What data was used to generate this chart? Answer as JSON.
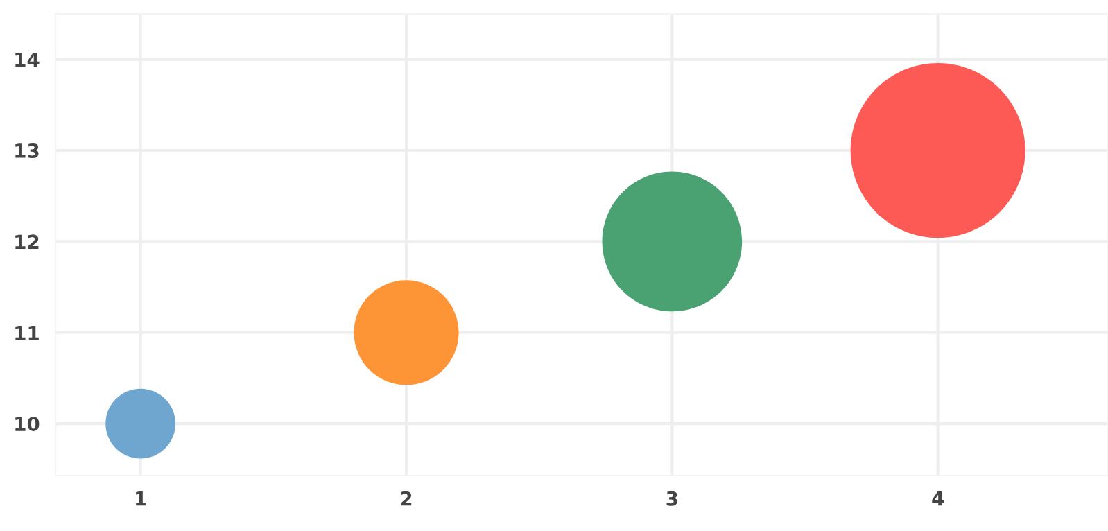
{
  "chart_data": {
    "type": "bubble",
    "x": [
      1,
      2,
      3,
      4
    ],
    "values": [
      10,
      11,
      12,
      13
    ],
    "sizes": [
      0.16,
      0.36,
      0.64,
      1
    ],
    "colors": [
      "#6ea6d0",
      "#fd9536",
      "#4aa172",
      "#fe5a55"
    ],
    "xlim": [
      0.68,
      4.64
    ],
    "ylim": [
      9.43,
      14.5
    ],
    "xticks": [
      1,
      2,
      3,
      4
    ],
    "yticks": [
      10,
      11,
      12,
      13,
      14
    ],
    "grid": true
  }
}
